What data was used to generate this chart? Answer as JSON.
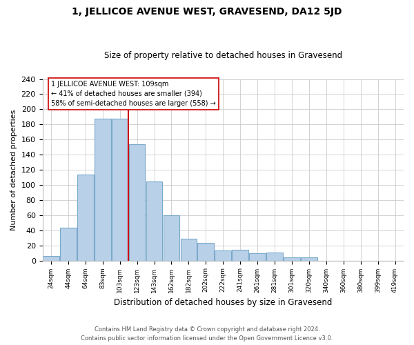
{
  "title": "1, JELLICOE AVENUE WEST, GRAVESEND, DA12 5JD",
  "subtitle": "Size of property relative to detached houses in Gravesend",
  "xlabel": "Distribution of detached houses by size in Gravesend",
  "ylabel": "Number of detached properties",
  "bar_labels": [
    "24sqm",
    "44sqm",
    "64sqm",
    "83sqm",
    "103sqm",
    "123sqm",
    "143sqm",
    "162sqm",
    "182sqm",
    "202sqm",
    "222sqm",
    "241sqm",
    "261sqm",
    "281sqm",
    "301sqm",
    "320sqm",
    "340sqm",
    "360sqm",
    "380sqm",
    "399sqm",
    "419sqm"
  ],
  "bar_values": [
    6,
    43,
    114,
    188,
    188,
    154,
    105,
    60,
    29,
    23,
    13,
    14,
    10,
    11,
    4,
    4,
    0,
    0,
    0,
    0,
    0
  ],
  "bar_color": "#b8d0e8",
  "bar_edge_color": "#7aaaca",
  "vline_x_index": 4.5,
  "vline_color": "#cc0000",
  "annotation_title": "1 JELLICOE AVENUE WEST: 109sqm",
  "annotation_line1": "← 41% of detached houses are smaller (394)",
  "annotation_line2": "58% of semi-detached houses are larger (558) →",
  "annotation_box_color": "#ffffff",
  "annotation_box_edge": "#cc0000",
  "ylim": [
    0,
    240
  ],
  "yticks": [
    0,
    20,
    40,
    60,
    80,
    100,
    120,
    140,
    160,
    180,
    200,
    220,
    240
  ],
  "footnote1": "Contains HM Land Registry data © Crown copyright and database right 2024.",
  "footnote2": "Contains public sector information licensed under the Open Government Licence v3.0.",
  "background_color": "#ffffff",
  "grid_color": "#cccccc"
}
